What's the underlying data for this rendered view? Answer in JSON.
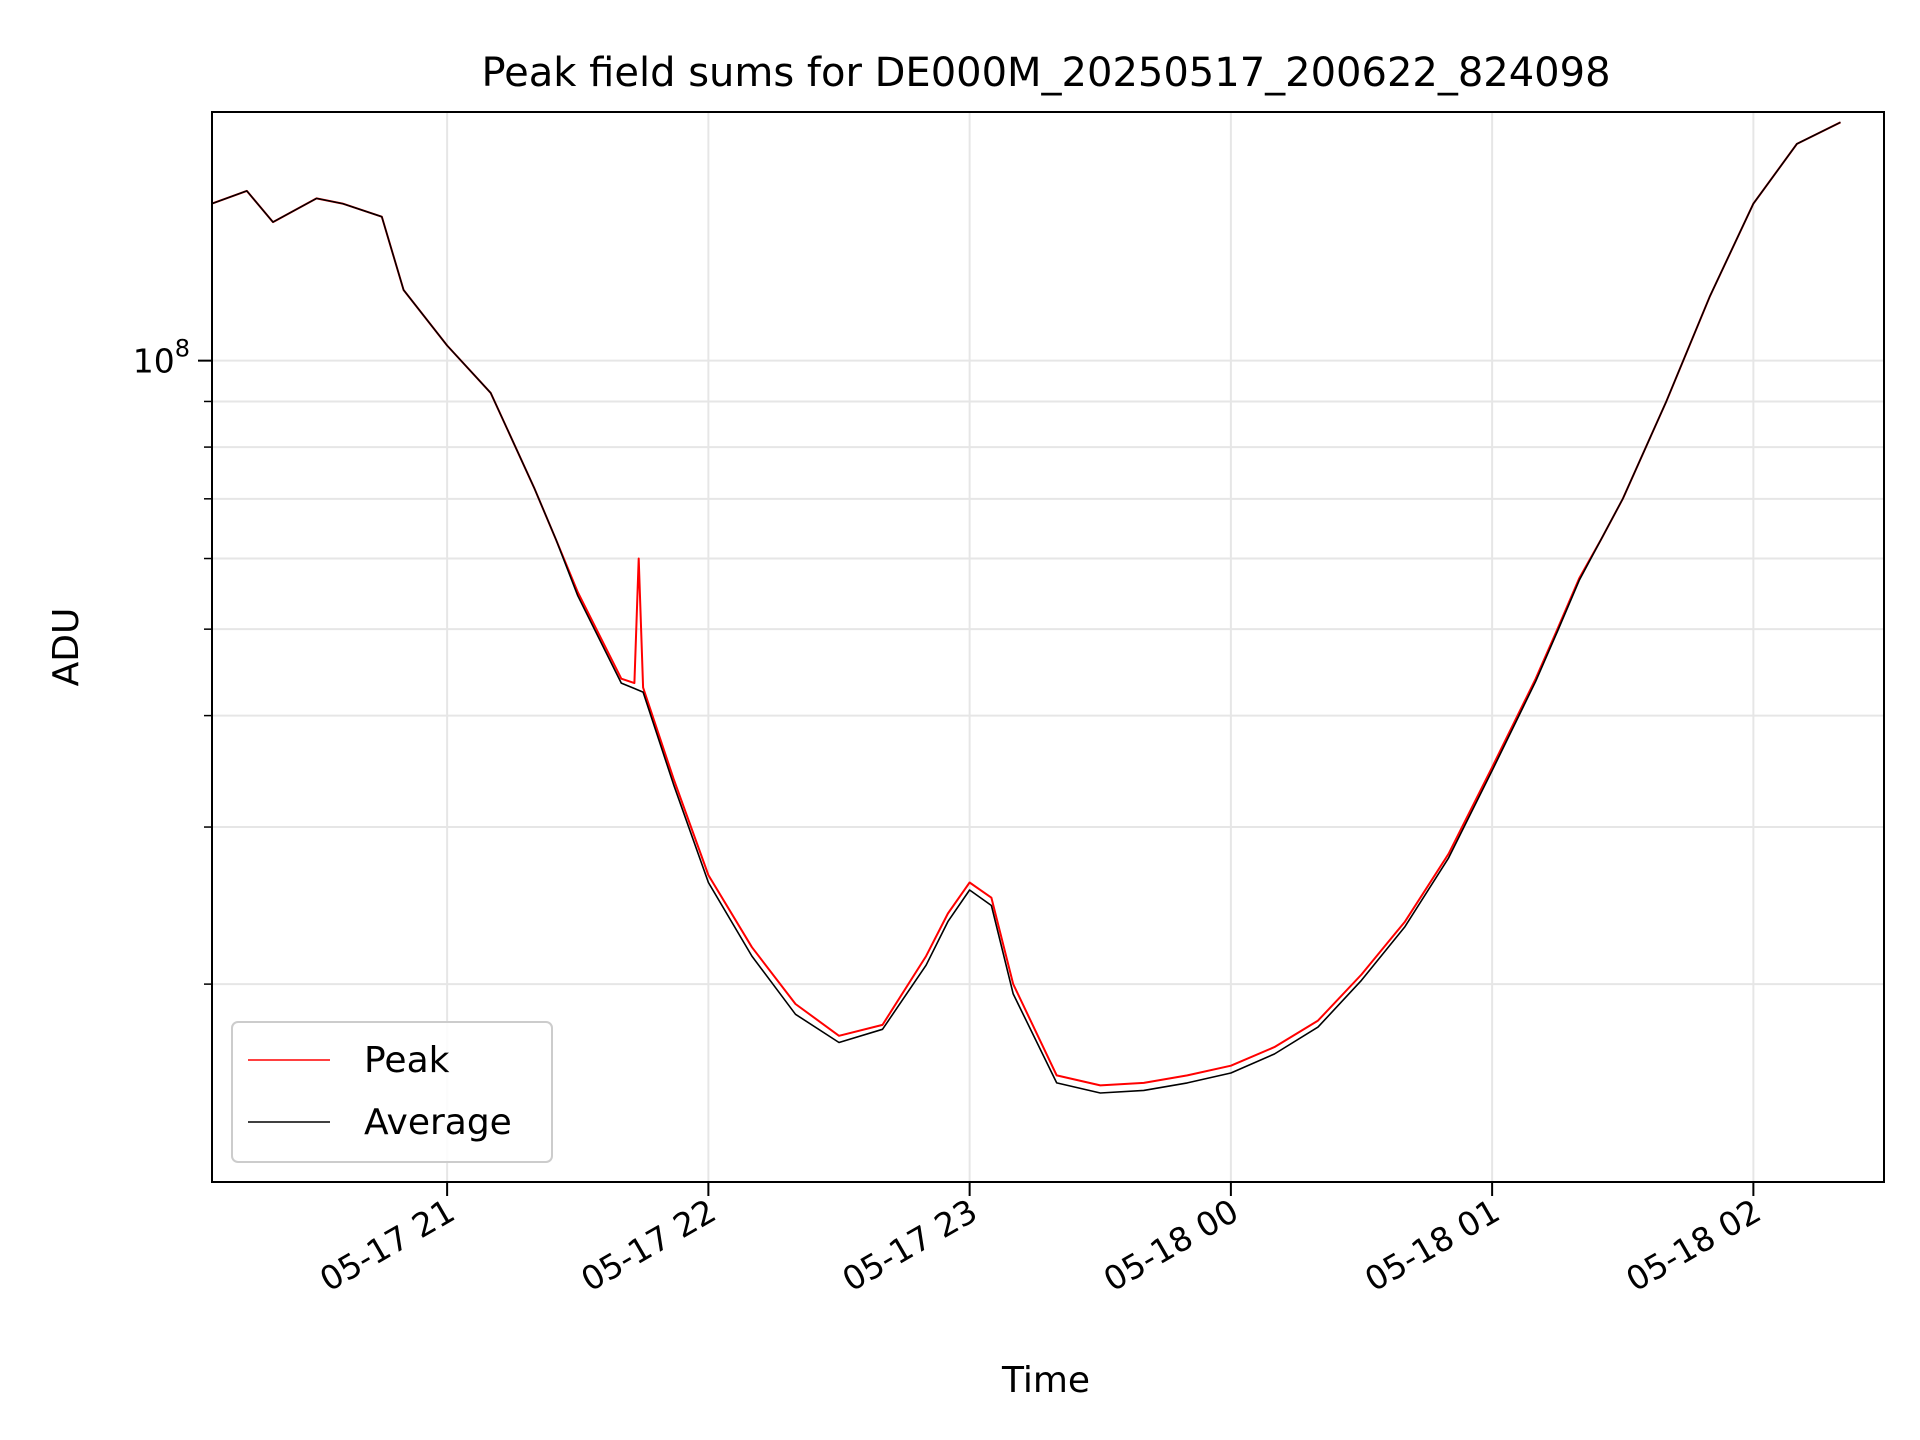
{
  "chart_data": {
    "type": "line",
    "title": "Peak field sums for DE000M_20250517_200622_824098",
    "xlabel": "Time",
    "ylabel": "ADU",
    "yscale": "log",
    "ylim": [
      12000000,
      190000000
    ],
    "xlim": [
      "2025-05-17 20:06",
      "2025-05-18 02:30"
    ],
    "grid": true,
    "legend_position": "lower-left",
    "x_ticks": [
      {
        "t": "2025-05-17 21:00",
        "label": "05-17 21"
      },
      {
        "t": "2025-05-17 22:00",
        "label": "05-17 22"
      },
      {
        "t": "2025-05-17 23:00",
        "label": "05-17 23"
      },
      {
        "t": "2025-05-18 00:00",
        "label": "05-18 00"
      },
      {
        "t": "2025-05-18 01:00",
        "label": "05-18 01"
      },
      {
        "t": "2025-05-18 02:00",
        "label": "05-18 02"
      }
    ],
    "y_ticks": [
      {
        "value": 100000000,
        "base": "10",
        "exp": "8"
      }
    ],
    "y_minor_ticks": [
      20000000,
      30000000,
      40000000,
      50000000,
      60000000,
      70000000,
      80000000,
      90000000,
      200000000
    ],
    "series": [
      {
        "name": "Peak",
        "color": "#ff0000",
        "points": [
          [
            "2025-05-17 20:06",
            150000000
          ],
          [
            "2025-05-17 20:14",
            155000000
          ],
          [
            "2025-05-17 20:20",
            143000000
          ],
          [
            "2025-05-17 20:30",
            152000000
          ],
          [
            "2025-05-17 20:36",
            150000000
          ],
          [
            "2025-05-17 20:45",
            145000000
          ],
          [
            "2025-05-17 20:50",
            120000000
          ],
          [
            "2025-05-17 21:00",
            104000000
          ],
          [
            "2025-05-17 21:10",
            92000000
          ],
          [
            "2025-05-17 21:20",
            72000000
          ],
          [
            "2025-05-17 21:25",
            63000000
          ],
          [
            "2025-05-17 21:30",
            55000000
          ],
          [
            "2025-05-17 21:40",
            44000000
          ],
          [
            "2025-05-17 21:43",
            43500000
          ],
          [
            "2025-05-17 21:44",
            60000000
          ],
          [
            "2025-05-17 21:45",
            43000000
          ],
          [
            "2025-05-17 21:52",
            34000000
          ],
          [
            "2025-05-17 22:00",
            26500000
          ],
          [
            "2025-05-17 22:10",
            22000000
          ],
          [
            "2025-05-17 22:20",
            19000000
          ],
          [
            "2025-05-17 22:30",
            17500000
          ],
          [
            "2025-05-17 22:40",
            18000000
          ],
          [
            "2025-05-17 22:50",
            21500000
          ],
          [
            "2025-05-17 22:55",
            24000000
          ],
          [
            "2025-05-17 23:00",
            26000000
          ],
          [
            "2025-05-17 23:05",
            25000000
          ],
          [
            "2025-05-17 23:10",
            20000000
          ],
          [
            "2025-05-17 23:20",
            15800000
          ],
          [
            "2025-05-17 23:30",
            15400000
          ],
          [
            "2025-05-17 23:40",
            15500000
          ],
          [
            "2025-05-17 23:50",
            15800000
          ],
          [
            "2025-05-18 00:00",
            16200000
          ],
          [
            "2025-05-18 00:10",
            17000000
          ],
          [
            "2025-05-18 00:20",
            18200000
          ],
          [
            "2025-05-18 00:30",
            20500000
          ],
          [
            "2025-05-18 00:40",
            23500000
          ],
          [
            "2025-05-18 00:50",
            28000000
          ],
          [
            "2025-05-18 01:00",
            35000000
          ],
          [
            "2025-05-18 01:10",
            44000000
          ],
          [
            "2025-05-18 01:15",
            50000000
          ],
          [
            "2025-05-18 01:20",
            57000000
          ],
          [
            "2025-05-18 01:25",
            63000000
          ],
          [
            "2025-05-18 01:30",
            70000000
          ],
          [
            "2025-05-18 01:40",
            90000000
          ],
          [
            "2025-05-18 01:50",
            118000000
          ],
          [
            "2025-05-18 02:00",
            150000000
          ],
          [
            "2025-05-18 02:10",
            175000000
          ],
          [
            "2025-05-18 02:20",
            185000000
          ]
        ]
      },
      {
        "name": "Average",
        "color": "#000000",
        "points": [
          [
            "2025-05-17 20:06",
            150000000
          ],
          [
            "2025-05-17 20:14",
            155000000
          ],
          [
            "2025-05-17 20:20",
            143000000
          ],
          [
            "2025-05-17 20:30",
            152000000
          ],
          [
            "2025-05-17 20:36",
            150000000
          ],
          [
            "2025-05-17 20:45",
            145000000
          ],
          [
            "2025-05-17 20:50",
            120000000
          ],
          [
            "2025-05-17 21:00",
            104000000
          ],
          [
            "2025-05-17 21:10",
            92000000
          ],
          [
            "2025-05-17 21:20",
            72000000
          ],
          [
            "2025-05-17 21:25",
            63000000
          ],
          [
            "2025-05-17 21:30",
            54500000
          ],
          [
            "2025-05-17 21:40",
            43500000
          ],
          [
            "2025-05-17 21:45",
            42500000
          ],
          [
            "2025-05-17 21:52",
            33500000
          ],
          [
            "2025-05-17 22:00",
            26000000
          ],
          [
            "2025-05-17 22:10",
            21500000
          ],
          [
            "2025-05-17 22:20",
            18500000
          ],
          [
            "2025-05-17 22:30",
            17200000
          ],
          [
            "2025-05-17 22:40",
            17800000
          ],
          [
            "2025-05-17 22:50",
            21000000
          ],
          [
            "2025-05-17 22:55",
            23500000
          ],
          [
            "2025-05-17 23:00",
            25500000
          ],
          [
            "2025-05-17 23:05",
            24500000
          ],
          [
            "2025-05-17 23:10",
            19500000
          ],
          [
            "2025-05-17 23:20",
            15500000
          ],
          [
            "2025-05-17 23:30",
            15100000
          ],
          [
            "2025-05-17 23:40",
            15200000
          ],
          [
            "2025-05-17 23:50",
            15500000
          ],
          [
            "2025-05-18 00:00",
            15900000
          ],
          [
            "2025-05-18 00:10",
            16700000
          ],
          [
            "2025-05-18 00:20",
            17900000
          ],
          [
            "2025-05-18 00:30",
            20200000
          ],
          [
            "2025-05-18 00:40",
            23200000
          ],
          [
            "2025-05-18 00:50",
            27700000
          ],
          [
            "2025-05-18 01:00",
            34700000
          ],
          [
            "2025-05-18 01:10",
            43700000
          ],
          [
            "2025-05-18 01:15",
            49700000
          ],
          [
            "2025-05-18 01:20",
            56700000
          ],
          [
            "2025-05-18 01:25",
            63000000
          ],
          [
            "2025-05-18 01:30",
            70000000
          ],
          [
            "2025-05-18 01:40",
            90000000
          ],
          [
            "2025-05-18 01:50",
            118000000
          ],
          [
            "2025-05-18 02:00",
            150000000
          ],
          [
            "2025-05-18 02:10",
            175000000
          ],
          [
            "2025-05-18 02:20",
            185000000
          ]
        ]
      }
    ]
  }
}
